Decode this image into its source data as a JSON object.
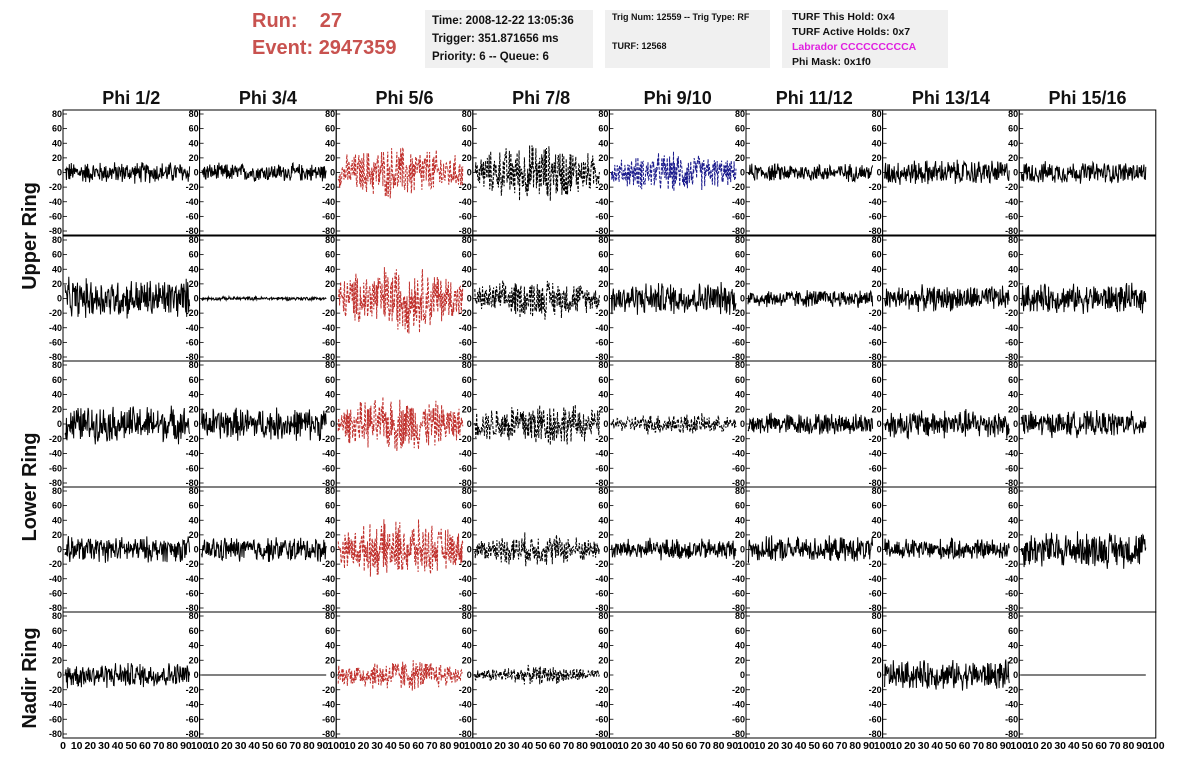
{
  "header": {
    "run_label": "Run:",
    "run_value": "27",
    "event_label": "Event:",
    "event_value": "2947359"
  },
  "info_time": {
    "time": "Time: 2008-12-22 13:05:36",
    "trigger": "Trigger: 351.871656 ms",
    "priority": "Priority: 6 -- Queue: 6"
  },
  "info_trig": {
    "trig": "Trig Num: 12559 -- Trig Type: RF",
    "turf": "TURF: 12568"
  },
  "info_turf": {
    "this_hold": "TURF This Hold: 0x4",
    "active_holds": "TURF Active Holds: 0x7",
    "labrador": "Labrador CCCCCCCCCA",
    "phi_mask": "Phi Mask: 0x1f0"
  },
  "colors": {
    "header_red": "#c8524f",
    "labrador_magenta": "#e020e0",
    "trace_black": "#000000",
    "trace_red": "#c0302c",
    "trace_blue": "#1a1a8c"
  },
  "chart_data": {
    "type": "line",
    "columns": [
      "Phi 1/2",
      "Phi 3/4",
      "Phi 5/6",
      "Phi 7/8",
      "Phi 9/10",
      "Phi 11/12",
      "Phi 13/14",
      "Phi 15/16"
    ],
    "rows": [
      "Upper Ring",
      "Lower Ring",
      "Nadir Ring"
    ],
    "x_ticks": [
      "0",
      "10",
      "20",
      "30",
      "40",
      "50",
      "60",
      "70",
      "80",
      "90",
      "100"
    ],
    "y_ticks": [
      "80",
      "60",
      "40",
      "20",
      "0",
      "-20",
      "-40",
      "-60",
      "-80"
    ],
    "ylim": [
      -80,
      80
    ],
    "xlim": [
      0,
      100
    ],
    "panel_grid": [
      [
        {
          "amp": 12,
          "style": "solid",
          "color": "black"
        },
        {
          "amp": 10,
          "style": "solid",
          "color": "black"
        },
        {
          "amp": 30,
          "style": "dashed",
          "color": "red"
        },
        {
          "amp": 32,
          "style": "dashed",
          "color": "black"
        },
        {
          "amp": 22,
          "style": "dashed",
          "color": "blue"
        },
        {
          "amp": 10,
          "style": "solid",
          "color": "black"
        },
        {
          "amp": 14,
          "style": "solid",
          "color": "black"
        },
        {
          "amp": 12,
          "style": "solid",
          "color": "black"
        }
      ],
      [
        {
          "amp": 22,
          "style": "solid",
          "color": "black"
        },
        {
          "amp": 2,
          "style": "solid",
          "color": "black"
        },
        {
          "amp": 38,
          "style": "dashed",
          "color": "red"
        },
        {
          "amp": 22,
          "style": "dashed",
          "color": "black"
        },
        {
          "amp": 18,
          "style": "solid",
          "color": "black"
        },
        {
          "amp": 10,
          "style": "solid",
          "color": "black"
        },
        {
          "amp": 14,
          "style": "solid",
          "color": "black"
        },
        {
          "amp": 16,
          "style": "solid",
          "color": "black"
        }
      ],
      [
        {
          "amp": 20,
          "style": "solid",
          "color": "black"
        },
        {
          "amp": 18,
          "style": "solid",
          "color": "black"
        },
        {
          "amp": 30,
          "style": "dashed",
          "color": "red"
        },
        {
          "amp": 26,
          "style": "dashed",
          "color": "black"
        },
        {
          "amp": 12,
          "style": "dashed",
          "color": "black"
        },
        {
          "amp": 12,
          "style": "solid",
          "color": "black"
        },
        {
          "amp": 16,
          "style": "solid",
          "color": "black"
        },
        {
          "amp": 14,
          "style": "solid",
          "color": "black"
        }
      ],
      [
        {
          "amp": 14,
          "style": "solid",
          "color": "black"
        },
        {
          "amp": 14,
          "style": "solid",
          "color": "black"
        },
        {
          "amp": 32,
          "style": "dashed",
          "color": "red"
        },
        {
          "amp": 18,
          "style": "dashed",
          "color": "black"
        },
        {
          "amp": 12,
          "style": "solid",
          "color": "black"
        },
        {
          "amp": 14,
          "style": "solid",
          "color": "black"
        },
        {
          "amp": 12,
          "style": "solid",
          "color": "black"
        },
        {
          "amp": 20,
          "style": "solid",
          "color": "black"
        }
      ],
      [
        {
          "amp": 14,
          "style": "solid",
          "color": "black"
        },
        {
          "amp": 0,
          "style": "flat",
          "color": "black"
        },
        {
          "amp": 18,
          "style": "dashed",
          "color": "red"
        },
        {
          "amp": 10,
          "style": "dashed",
          "color": "black"
        },
        {
          "amp": 0,
          "style": "none",
          "color": "black"
        },
        {
          "amp": 0,
          "style": "none",
          "color": "black"
        },
        {
          "amp": 16,
          "style": "solid",
          "color": "black"
        },
        {
          "amp": 0,
          "style": "flat",
          "color": "black"
        }
      ]
    ]
  }
}
